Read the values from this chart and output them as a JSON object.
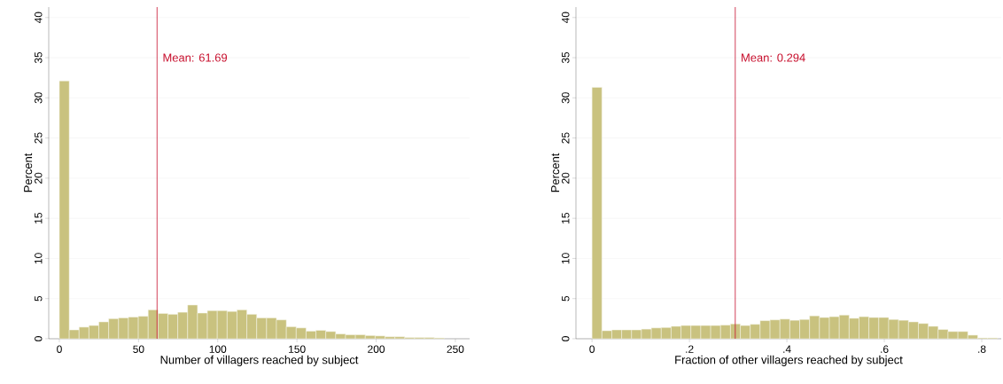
{
  "chart_data": [
    {
      "type": "histogram",
      "xlabel": "Number of villagers reached by subject",
      "ylabel": "Percent",
      "color": "#c9c27f",
      "bins": [
        0,
        6.23,
        12.46,
        18.69,
        24.92,
        31.15,
        37.38,
        43.61,
        49.84,
        56.07,
        62.3,
        68.53,
        74.76,
        80.99,
        87.22,
        93.45,
        99.68,
        105.91,
        112.14,
        118.37,
        124.6,
        130.83,
        137.06,
        143.29,
        149.52,
        155.75,
        161.98,
        168.21,
        174.44,
        180.67,
        186.9,
        193.13,
        199.36,
        205.59,
        211.82,
        218.05,
        224.28,
        230.51,
        236.74,
        242.97
      ],
      "values": [
        32.1,
        1.1,
        1.45,
        1.65,
        2.1,
        2.5,
        2.6,
        2.7,
        2.8,
        3.6,
        3.15,
        3.05,
        3.3,
        4.2,
        3.2,
        3.5,
        3.5,
        3.4,
        3.6,
        3.05,
        2.6,
        2.6,
        2.35,
        1.5,
        1.35,
        0.95,
        1.05,
        0.9,
        0.6,
        0.5,
        0.5,
        0.4,
        0.35,
        0.25,
        0.25,
        0.15,
        0.15,
        0.15,
        0.1
      ],
      "xlim": [
        -6.7,
        259
      ],
      "ylim": [
        0,
        41.3
      ],
      "xticks": [
        0,
        50,
        100,
        150,
        200,
        250
      ],
      "yticks": [
        0,
        5,
        10,
        15,
        20,
        25,
        30,
        35,
        40
      ],
      "grid": "y",
      "ref_lines": [
        {
          "axis": "x",
          "value": 61.69,
          "label": "Mean: 61.69",
          "color": "#c8102e"
        }
      ]
    },
    {
      "type": "histogram",
      "xlabel": "Fraction of other villagers reached by subject",
      "ylabel": "Percent",
      "color": "#c9c27f",
      "bins": [
        0,
        0.0203,
        0.0406,
        0.0609,
        0.0812,
        0.1015,
        0.1218,
        0.1421,
        0.1624,
        0.1827,
        0.203,
        0.2233,
        0.2436,
        0.2639,
        0.2842,
        0.3045,
        0.3248,
        0.3451,
        0.3654,
        0.3857,
        0.406,
        0.4263,
        0.4466,
        0.4669,
        0.4872,
        0.5075,
        0.5278,
        0.5481,
        0.5684,
        0.5887,
        0.609,
        0.6293,
        0.6496,
        0.6699,
        0.6902,
        0.7105,
        0.7308,
        0.7511,
        0.7714,
        0.7917,
        0.812,
        0.8323
      ],
      "values": [
        31.3,
        1.0,
        1.1,
        1.1,
        1.1,
        1.2,
        1.35,
        1.4,
        1.55,
        1.65,
        1.65,
        1.65,
        1.65,
        1.7,
        1.85,
        1.65,
        1.8,
        2.25,
        2.35,
        2.45,
        2.3,
        2.4,
        2.85,
        2.65,
        2.75,
        2.95,
        2.55,
        2.75,
        2.65,
        2.65,
        2.4,
        2.3,
        2.1,
        1.9,
        1.55,
        1.15,
        0.9,
        0.9,
        0.45,
        0.1,
        0.1
      ],
      "xlim": [
        -0.033,
        0.84
      ],
      "ylim": [
        0,
        41.3
      ],
      "xticks": [
        0,
        {
          "value": 0.2,
          "label": ".2"
        },
        {
          "value": 0.4,
          "label": ".4"
        },
        {
          "value": 0.6,
          "label": ".6"
        },
        {
          "value": 0.8,
          "label": ".8"
        }
      ],
      "yticks": [
        0,
        5,
        10,
        15,
        20,
        25,
        30,
        35,
        40
      ],
      "grid": "y",
      "ref_lines": [
        {
          "axis": "x",
          "value": 0.294,
          "label": "Mean: 0.294",
          "color": "#c8102e"
        }
      ]
    }
  ]
}
